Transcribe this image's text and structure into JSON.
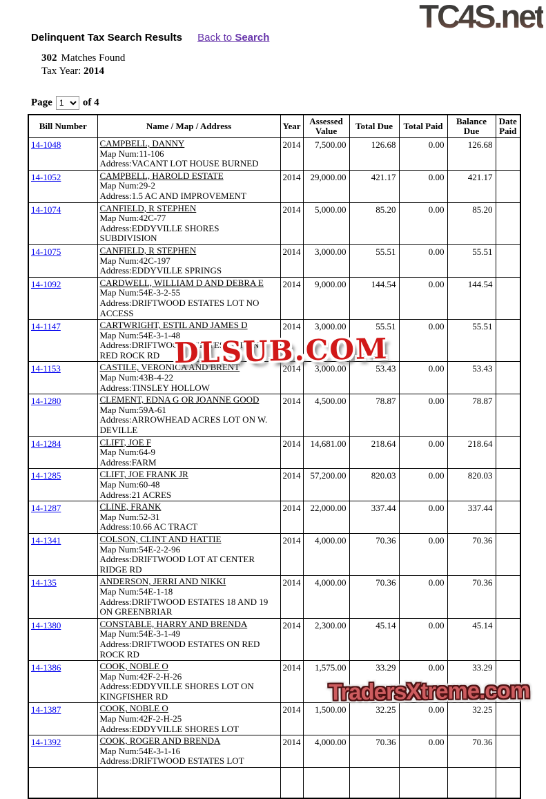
{
  "logo": {
    "text": "TC4S.net"
  },
  "header": {
    "title": "Delinquent Tax Search Results",
    "back_link": {
      "prefix": "Back to ",
      "bold": "Search"
    }
  },
  "summary": {
    "match_count": "302",
    "matches_label": "Matches Found",
    "tax_year_label": "Tax Year:",
    "tax_year": "2014"
  },
  "pagination": {
    "page_label": "Page",
    "current_page": "1",
    "of_label": "of 4"
  },
  "table": {
    "columns": [
      "Bill Number",
      "Name / Map / Address",
      "Year",
      "Assessed Value",
      "Total Due",
      "Total Paid",
      "Balance Due",
      "Date Paid"
    ],
    "partial_empty_row": true,
    "rows": [
      {
        "bill": "14-1048",
        "name": "CAMPBELL, DANNY",
        "map": "Map Num:11-106",
        "address": "Address:VACANT LOT HOUSE BURNED",
        "year": "2014",
        "assessed": "7,500.00",
        "total_due": "126.68",
        "total_paid": "0.00",
        "balance_due": "126.68",
        "date_paid": ""
      },
      {
        "bill": "14-1052",
        "name": "CAMPBELL, HAROLD ESTATE",
        "map": "Map Num:29-2",
        "address": "Address:1.5 AC AND IMPROVEMENT",
        "year": "2014",
        "assessed": "29,000.00",
        "total_due": "421.17",
        "total_paid": "0.00",
        "balance_due": "421.17",
        "date_paid": ""
      },
      {
        "bill": "14-1074",
        "name": "CANFIELD, R STEPHEN",
        "map": "Map Num:42C-77",
        "address": "Address:EDDYVILLE SHORES SUBDIVISION",
        "year": "2014",
        "assessed": "5,000.00",
        "total_due": "85.20",
        "total_paid": "0.00",
        "balance_due": "85.20",
        "date_paid": ""
      },
      {
        "bill": "14-1075",
        "name": "CANFIELD, R STEPHEN",
        "map": "Map Num:42C-197",
        "address": "Address:EDDYVILLE SPRINGS",
        "year": "2014",
        "assessed": "3,000.00",
        "total_due": "55.51",
        "total_paid": "0.00",
        "balance_due": "55.51",
        "date_paid": ""
      },
      {
        "bill": "14-1092",
        "name": "CARDWELL, WILLIAM D AND DEBRA E",
        "map": "Map Num:54E-3-2-55",
        "address": "Address:DRIFTWOOD ESTATES LOT NO ACCESS",
        "year": "2014",
        "assessed": "9,000.00",
        "total_due": "144.54",
        "total_paid": "0.00",
        "balance_due": "144.54",
        "date_paid": ""
      },
      {
        "bill": "14-1147",
        "name": "CARTWRIGHT, ESTIL AND JAMES D",
        "map": "Map Num:54E-3-1-48",
        "address": "Address:DRIFTWOOD ESTATES LOT ON RED ROCK RD",
        "year": "2014",
        "assessed": "3,000.00",
        "total_due": "55.51",
        "total_paid": "0.00",
        "balance_due": "55.51",
        "date_paid": ""
      },
      {
        "bill": "14-1153",
        "name": "CASTILE, VERONICA AND BRENT",
        "map": "Map Num:43B-4-22",
        "address": "Address:TINSLEY HOLLOW",
        "year": "2014",
        "assessed": "3,000.00",
        "total_due": "53.43",
        "total_paid": "0.00",
        "balance_due": "53.43",
        "date_paid": ""
      },
      {
        "bill": "14-1280",
        "name": "CLEMENT, EDNA G OR JOANNE GOOD",
        "map": "Map Num:59A-61",
        "address": "Address:ARROWHEAD ACRES LOT ON W. DEVILLE",
        "year": "2014",
        "assessed": "4,500.00",
        "total_due": "78.87",
        "total_paid": "0.00",
        "balance_due": "78.87",
        "date_paid": ""
      },
      {
        "bill": "14-1284",
        "name": "CLIFT, JOE F",
        "map": "Map Num:64-9",
        "address": "Address:FARM",
        "year": "2014",
        "assessed": "14,681.00",
        "total_due": "218.64",
        "total_paid": "0.00",
        "balance_due": "218.64",
        "date_paid": ""
      },
      {
        "bill": "14-1285",
        "name": "CLIFT, JOE FRANK JR",
        "map": "Map Num:60-48",
        "address": "Address:21 ACRES",
        "year": "2014",
        "assessed": "57,200.00",
        "total_due": "820.03",
        "total_paid": "0.00",
        "balance_due": "820.03",
        "date_paid": ""
      },
      {
        "bill": "14-1287",
        "name": "CLINE, FRANK",
        "map": "Map Num:52-31",
        "address": "Address:10.66 AC TRACT",
        "year": "2014",
        "assessed": "22,000.00",
        "total_due": "337.44",
        "total_paid": "0.00",
        "balance_due": "337.44",
        "date_paid": ""
      },
      {
        "bill": "14-1341",
        "name": "COLSON, CLINT AND HATTIE",
        "map": "Map Num:54E-2-2-96",
        "address": "Address:DRIFTWOOD LOT AT CENTER RIDGE RD",
        "year": "2014",
        "assessed": "4,000.00",
        "total_due": "70.36",
        "total_paid": "0.00",
        "balance_due": "70.36",
        "date_paid": ""
      },
      {
        "bill": "14-135",
        "name": "ANDERSON, JERRI AND NIKKI",
        "map": "Map Num:54E-1-18",
        "address": "Address:DRIFTWOOD ESTATES 18 AND 19 ON GREENBRIAR",
        "year": "2014",
        "assessed": "4,000.00",
        "total_due": "70.36",
        "total_paid": "0.00",
        "balance_due": "70.36",
        "date_paid": ""
      },
      {
        "bill": "14-1380",
        "name": "CONSTABLE, HARRY AND BRENDA",
        "map": "Map Num:54E-3-1-49",
        "address": "Address:DRIFTWOOD ESTATES ON RED ROCK RD",
        "year": "2014",
        "assessed": "2,300.00",
        "total_due": "45.14",
        "total_paid": "0.00",
        "balance_due": "45.14",
        "date_paid": ""
      },
      {
        "bill": "14-1386",
        "name": "COOK, NOBLE O",
        "map": "Map Num:42F-2-H-26",
        "address": "Address:EDDYVILLE SHORES LOT ON KINGFISHER RD",
        "year": "2014",
        "assessed": "1,575.00",
        "total_due": "33.29",
        "total_paid": "0.00",
        "balance_due": "33.29",
        "date_paid": ""
      },
      {
        "bill": "14-1387",
        "name": "COOK, NOBLE O",
        "map": "Map Num:42F-2-H-25",
        "address": "Address:EDDYVILLE SHORES LOT",
        "year": "2014",
        "assessed": "1,500.00",
        "total_due": "32.25",
        "total_paid": "0.00",
        "balance_due": "32.25",
        "date_paid": ""
      },
      {
        "bill": "14-1392",
        "name": "COOK, ROGER AND BRENDA",
        "map": "Map Num:54E-3-1-16",
        "address": "Address:DRIFTWOOD ESTATES LOT",
        "year": "2014",
        "assessed": "4,000.00",
        "total_due": "70.36",
        "total_paid": "0.00",
        "balance_due": "70.36",
        "date_paid": ""
      }
    ]
  },
  "watermarks": {
    "center": "DLSUB.COM",
    "bottom_right": "TradersXtreme.com"
  },
  "colors": {
    "link_blue": "#0000EE",
    "visited_purple": "#6633AA",
    "watermark_red": "#D11818",
    "banner_red": "#CD5C5F"
  }
}
